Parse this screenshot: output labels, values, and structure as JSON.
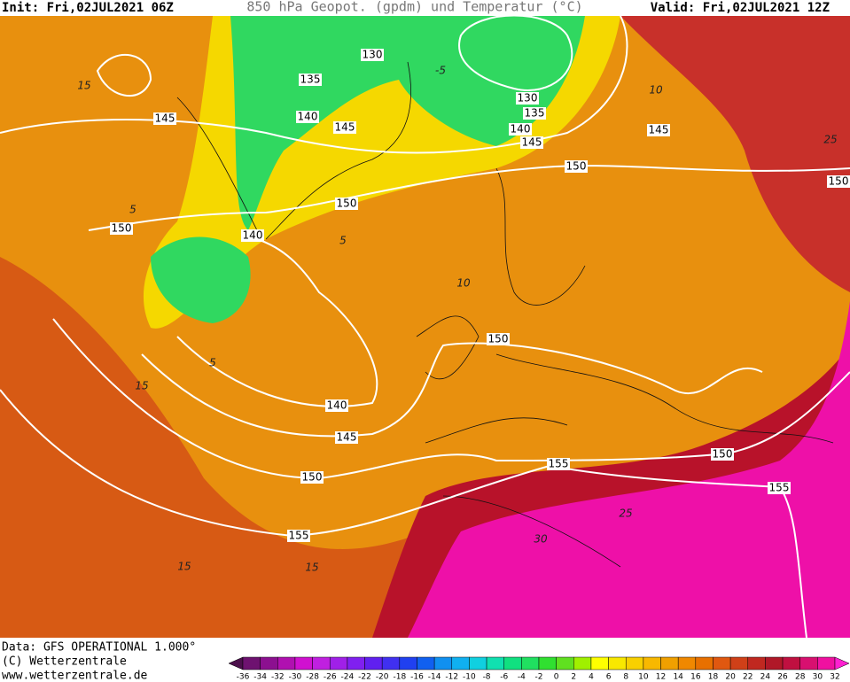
{
  "header": {
    "init": "Init: Fri,02JUL2021 06Z",
    "title": "850 hPa Geopot. (gpdm) und Temperatur (°C)",
    "valid": "Valid: Fri,02JUL2021 12Z"
  },
  "map": {
    "geopotential_labels": [
      130,
      135,
      140,
      145,
      145,
      150,
      140,
      150,
      130,
      135,
      140,
      145,
      150,
      145,
      150,
      150,
      140,
      145,
      150,
      155,
      155,
      150,
      155
    ],
    "temperature_labels": [
      -5,
      15,
      5,
      5,
      10,
      10,
      5,
      15,
      15,
      15,
      25,
      30,
      25
    ]
  },
  "footer": {
    "data": "Data: GFS OPERATIONAL 1.000°",
    "copyright": "(C) Wetterzentrale",
    "url": "www.wetterzentrale.de"
  },
  "color_scale": {
    "ticks": [
      -36,
      -34,
      -32,
      -30,
      -28,
      -26,
      -24,
      -22,
      -20,
      -18,
      -16,
      -14,
      -12,
      -10,
      -8,
      -6,
      -4,
      -2,
      0,
      2,
      4,
      6,
      8,
      10,
      12,
      14,
      16,
      18,
      20,
      22,
      24,
      26,
      28,
      30,
      32
    ],
    "colors": [
      "#4b0f4b",
      "#6e1270",
      "#8c1090",
      "#b010b0",
      "#d010d0",
      "#c020e0",
      "#a020e8",
      "#8020f0",
      "#6020f0",
      "#4030f0",
      "#2040f0",
      "#1060f0",
      "#1090f0",
      "#10b0f0",
      "#10d0e0",
      "#10e0b0",
      "#10e080",
      "#20e060",
      "#30e030",
      "#60e020",
      "#a0f000",
      "#ffff00",
      "#f8e800",
      "#f8d000",
      "#f8b800",
      "#f0a000",
      "#f08800",
      "#e87000",
      "#e05810",
      "#d04018",
      "#c02820",
      "#b01828",
      "#c01040",
      "#d81070",
      "#f010a0",
      "#ff20d0"
    ]
  }
}
